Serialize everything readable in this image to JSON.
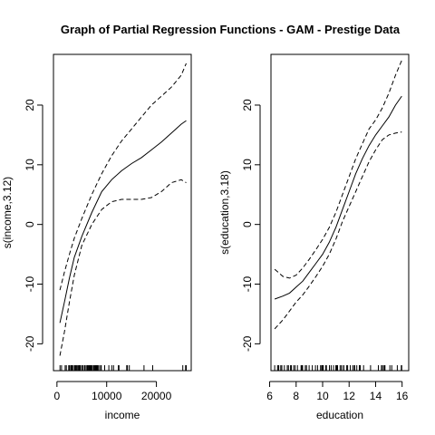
{
  "title": "Graph of Partial Regression Functions - GAM - Prestige Data",
  "chart_data": [
    {
      "type": "line",
      "xlabel": "income",
      "ylabel": "s(income,3.12)",
      "xlim": [
        -700,
        27000
      ],
      "ylim": [
        -24.5,
        28.5
      ],
      "xticks": [
        0,
        10000,
        20000
      ],
      "yticks": [
        -20,
        -10,
        0,
        10,
        20
      ],
      "grid": false,
      "legend": "none",
      "series": [
        {
          "style": "solid",
          "x": [
            600,
            1500,
            2500,
            3500,
            5000,
            7000,
            9000,
            11000,
            13000,
            15000,
            17000,
            19000,
            21000,
            23000,
            25000,
            26000
          ],
          "y": [
            -16.5,
            -13,
            -9,
            -5.5,
            -2,
            2,
            5.5,
            7.5,
            9,
            10.2,
            11.2,
            12.5,
            13.8,
            15.3,
            16.8,
            17.4
          ]
        },
        {
          "style": "dashed",
          "x": [
            600,
            1500,
            2500,
            3500,
            5000,
            7000,
            9000,
            11000,
            13000,
            15000,
            17000,
            19000,
            21000,
            23000,
            25000,
            26000
          ],
          "y": [
            -11,
            -8,
            -5,
            -2.3,
            1,
            5,
            8.5,
            11.5,
            14,
            16,
            18,
            20,
            21.5,
            23,
            25,
            27
          ]
        },
        {
          "style": "dashed",
          "x": [
            600,
            1500,
            2500,
            3500,
            5000,
            7000,
            9000,
            11000,
            13000,
            15000,
            17000,
            19000,
            21000,
            23000,
            25000,
            26000
          ],
          "y": [
            -22,
            -18,
            -13,
            -8.5,
            -3.5,
            0,
            2.5,
            3.8,
            4.2,
            4.2,
            4.2,
            4.5,
            5.5,
            7,
            7.5,
            7
          ]
        }
      ],
      "rug": [
        611,
        918,
        1656,
        1890,
        2370,
        2448,
        2594,
        2847,
        2901,
        3000,
        3148,
        3161,
        3485,
        3582,
        3640,
        3739,
        3910,
        4075,
        4280,
        4443,
        4549,
        4614,
        4686,
        4741,
        5052,
        5180,
        5511,
        5648,
        5902,
        6112,
        6197,
        6336,
        6462,
        6565,
        6686,
        6860,
        7059,
        7147,
        7405,
        7482,
        7562,
        7716,
        7869,
        7956,
        8049,
        8131,
        8206,
        8425,
        8780,
        8865,
        8895,
        9593,
        10432,
        11023,
        11377,
        12351,
        12480,
        14032,
        14163,
        14558,
        17498,
        19263,
        25308,
        25879,
        26000
      ]
    },
    {
      "type": "line",
      "xlabel": "education",
      "ylabel": "s(education,3.18)",
      "xlim": [
        6.1,
        16.5
      ],
      "ylim": [
        -24.5,
        28.5
      ],
      "xticks": [
        6,
        8,
        10,
        12,
        14,
        16
      ],
      "yticks": [
        -20,
        -10,
        0,
        10,
        20
      ],
      "grid": false,
      "legend": "none",
      "series": [
        {
          "style": "solid",
          "x": [
            6.38,
            7.0,
            7.5,
            8.0,
            8.5,
            9.0,
            9.5,
            10.0,
            10.5,
            11.0,
            11.5,
            12.0,
            12.5,
            13.0,
            13.5,
            14.0,
            14.5,
            15.0,
            15.5,
            15.97
          ],
          "y": [
            -12.5,
            -12,
            -11.5,
            -10.5,
            -9.5,
            -8,
            -6.5,
            -5,
            -3,
            -0.5,
            2.5,
            5.5,
            8.5,
            11,
            13.2,
            15,
            16.5,
            18,
            20,
            21.5
          ]
        },
        {
          "style": "dashed",
          "x": [
            6.38,
            7.0,
            7.5,
            8.0,
            8.5,
            9.0,
            9.5,
            10.0,
            10.5,
            11.0,
            11.5,
            12.0,
            12.5,
            13.0,
            13.5,
            14.0,
            14.5,
            15.0,
            15.5,
            15.97
          ],
          "y": [
            -7.5,
            -8.7,
            -9,
            -8.5,
            -7.3,
            -5.8,
            -4.2,
            -2.5,
            -0.5,
            2,
            5,
            8,
            11,
            13.5,
            16,
            17.5,
            19.5,
            22,
            25,
            27.5
          ]
        },
        {
          "style": "dashed",
          "x": [
            6.38,
            7.0,
            7.5,
            8.0,
            8.5,
            9.0,
            9.5,
            10.0,
            10.5,
            11.0,
            11.5,
            12.0,
            12.5,
            13.0,
            13.5,
            14.0,
            14.5,
            15.0,
            15.5,
            15.97
          ],
          "y": [
            -17.5,
            -16,
            -14.5,
            -13,
            -11.8,
            -10.3,
            -8.7,
            -7,
            -5,
            -2.5,
            0.5,
            3,
            5.5,
            8,
            10.5,
            12.5,
            14.2,
            15,
            15.3,
            15.5
          ]
        }
      ],
      "rug": [
        6.38,
        6.6,
        6.67,
        6.69,
        6.84,
        6.92,
        7.11,
        7.33,
        7.42,
        7.58,
        7.64,
        7.81,
        7.92,
        8.1,
        8.37,
        8.43,
        8.49,
        8.69,
        8.78,
        8.98,
        9.22,
        9.46,
        9.62,
        9.84,
        9.93,
        10.0,
        10.05,
        10.23,
        10.29,
        10.51,
        10.64,
        10.82,
        11.0,
        11.04,
        11.09,
        11.13,
        11.32,
        11.42,
        11.44,
        11.59,
        11.6,
        11.82,
        11.89,
        12.09,
        12.27,
        12.39,
        12.43,
        12.58,
        12.77,
        12.79,
        12.84,
        13.09,
        13.62,
        14.21,
        14.44,
        14.52,
        14.64,
        14.69,
        14.71,
        15.08,
        15.22,
        15.64,
        15.94,
        15.97
      ]
    }
  ]
}
